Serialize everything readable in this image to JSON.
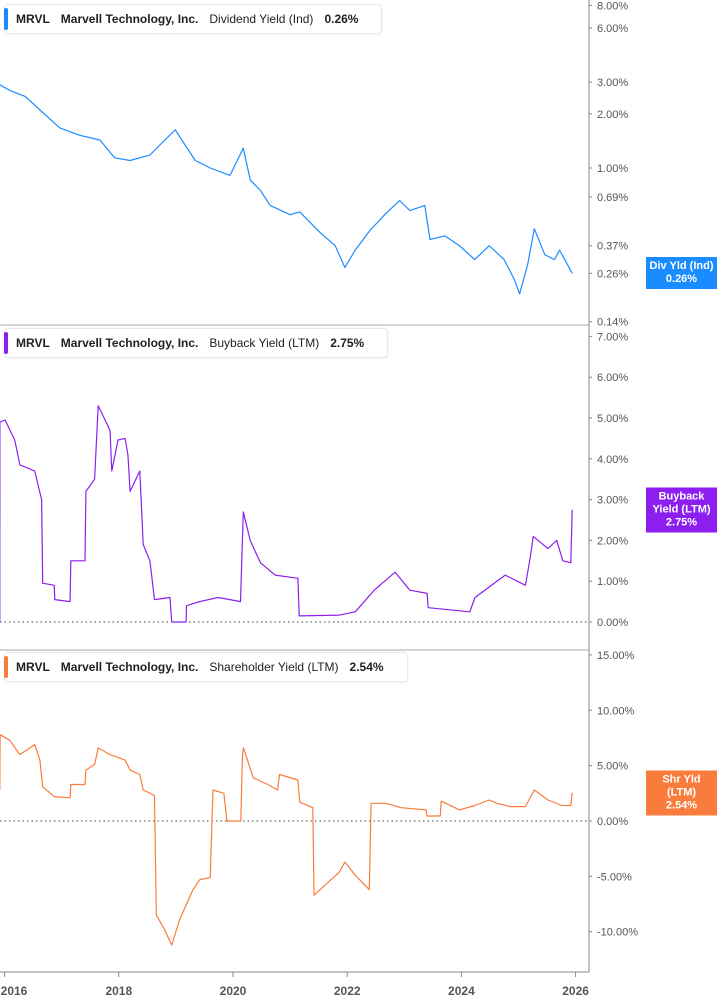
{
  "colors": {
    "dividend": "#1a8cff",
    "buyback": "#8c1ff0",
    "shareholder": "#f97c3c",
    "axis": "#888888",
    "text": "#555555"
  },
  "chart_data": [
    {
      "type": "line",
      "ticker": "MRVL",
      "company": "Marvell Technology, Inc.",
      "metric": "Dividend Yield (Ind)",
      "current_value": "0.26%",
      "callout_label": "Div Yld (Ind)",
      "y_scale": "log",
      "y_ticks": [
        "8.00%",
        "6.00%",
        "3.00%",
        "2.00%",
        "1.00%",
        "0.69%",
        "0.37%",
        "0.26%",
        "0.14%"
      ],
      "y_tick_values": [
        8,
        6,
        3,
        2,
        1,
        0.69,
        0.37,
        0.26,
        0.14
      ],
      "ylim": [
        0.14,
        8
      ],
      "points": [
        [
          "2015-12-01",
          2.9
        ],
        [
          "2016-02-03",
          2.7
        ],
        [
          "2016-05-12",
          2.5
        ],
        [
          "2016-08-15",
          2.1
        ],
        [
          "2016-12-20",
          1.67
        ],
        [
          "2017-04-27",
          1.52
        ],
        [
          "2017-09-02",
          1.43
        ],
        [
          "2017-12-05",
          1.14
        ],
        [
          "2018-03-14",
          1.1
        ],
        [
          "2018-07-19",
          1.18
        ],
        [
          "2018-10-23",
          1.43
        ],
        [
          "2018-12-28",
          1.63
        ],
        [
          "2019-03-01",
          1.34
        ],
        [
          "2019-05-05",
          1.1
        ],
        [
          "2019-08-08",
          1.0
        ],
        [
          "2019-12-13",
          0.91
        ],
        [
          "2020-03-07",
          1.29
        ],
        [
          "2020-04-20",
          0.86
        ],
        [
          "2020-06-25",
          0.75
        ],
        [
          "2020-08-26",
          0.62
        ],
        [
          "2021-01-01",
          0.55
        ],
        [
          "2021-03-04",
          0.57
        ],
        [
          "2021-07-09",
          0.44
        ],
        [
          "2021-10-16",
          0.37
        ],
        [
          "2021-12-17",
          0.28
        ],
        [
          "2022-02-21",
          0.35
        ],
        [
          "2022-05-27",
          0.45
        ],
        [
          "2022-08-29",
          0.55
        ],
        [
          "2022-12-02",
          0.66
        ],
        [
          "2023-02-06",
          0.58
        ],
        [
          "2023-05-12",
          0.62
        ],
        [
          "2023-06-14",
          0.4
        ],
        [
          "2023-09-16",
          0.42
        ],
        [
          "2023-12-20",
          0.37
        ],
        [
          "2024-03-26",
          0.31
        ],
        [
          "2024-06-28",
          0.37
        ],
        [
          "2024-10-01",
          0.31
        ],
        [
          "2024-12-06",
          0.24
        ],
        [
          "2025-01-08",
          0.2
        ],
        [
          "2025-02-28",
          0.29
        ],
        [
          "2025-04-12",
          0.46
        ],
        [
          "2025-06-18",
          0.33
        ],
        [
          "2025-08-19",
          0.31
        ],
        [
          "2025-09-21",
          0.35
        ],
        [
          "2025-12-10",
          0.26
        ]
      ]
    },
    {
      "type": "line",
      "ticker": "MRVL",
      "company": "Marvell Technology, Inc.",
      "metric": "Buyback Yield (LTM)",
      "current_value": "2.75%",
      "callout_label": "Buyback Yield (LTM)",
      "y_scale": "linear",
      "y_ticks": [
        "7.00%",
        "6.00%",
        "5.00%",
        "4.00%",
        "3.00%",
        "2.00%",
        "1.00%",
        "0.00%"
      ],
      "y_tick_values": [
        7,
        6,
        5,
        4,
        3,
        2,
        1,
        0
      ],
      "ylim": [
        0,
        7
      ],
      "zero_line": true,
      "points": [
        [
          "2015-12-01",
          0
        ],
        [
          "2015-12-02",
          4.9
        ],
        [
          "2016-01-04",
          4.95
        ],
        [
          "2016-03-06",
          4.46
        ],
        [
          "2016-04-08",
          3.85
        ],
        [
          "2016-07-12",
          3.7
        ],
        [
          "2016-08-25",
          3.0
        ],
        [
          "2016-09-01",
          0.95
        ],
        [
          "2016-11-14",
          0.9
        ],
        [
          "2016-11-18",
          0.55
        ],
        [
          "2017-02-24",
          0.5
        ],
        [
          "2017-02-28",
          1.5
        ],
        [
          "2017-05-30",
          1.5
        ],
        [
          "2017-06-05",
          3.2
        ],
        [
          "2017-07-30",
          3.5
        ],
        [
          "2017-08-22",
          5.3
        ],
        [
          "2017-11-06",
          4.7
        ],
        [
          "2017-11-17",
          3.7
        ],
        [
          "2017-12-27",
          4.46
        ],
        [
          "2018-02-10",
          4.5
        ],
        [
          "2018-02-28",
          4.1
        ],
        [
          "2018-03-14",
          3.2
        ],
        [
          "2018-05-15",
          3.7
        ],
        [
          "2018-06-06",
          1.9
        ],
        [
          "2018-07-19",
          1.5
        ],
        [
          "2018-08-17",
          0.55
        ],
        [
          "2018-11-24",
          0.6
        ],
        [
          "2018-12-05",
          0
        ],
        [
          "2019-03-07",
          0
        ],
        [
          "2019-03-10",
          0.4
        ],
        [
          "2019-06-03",
          0.5
        ],
        [
          "2019-09-27",
          0.6
        ],
        [
          "2019-12-13",
          0.55
        ],
        [
          "2020-02-18",
          0.5
        ],
        [
          "2020-03-07",
          2.7
        ],
        [
          "2020-04-20",
          2.0
        ],
        [
          "2020-06-25",
          1.45
        ],
        [
          "2020-09-27",
          1.15
        ],
        [
          "2021-02-20",
          1.07
        ],
        [
          "2021-02-28",
          0.15
        ],
        [
          "2021-11-13",
          0.17
        ],
        [
          "2022-02-21",
          0.25
        ],
        [
          "2022-06-28",
          0.8
        ],
        [
          "2022-11-03",
          1.22
        ],
        [
          "2023-02-06",
          0.78
        ],
        [
          "2023-05-27",
          0.7
        ],
        [
          "2023-06-03",
          0.35
        ],
        [
          "2024-02-24",
          0.25
        ],
        [
          "2024-03-28",
          0.6
        ],
        [
          "2024-10-08",
          1.15
        ],
        [
          "2025-02-14",
          0.9
        ],
        [
          "2025-03-18",
          1.6
        ],
        [
          "2025-04-05",
          2.1
        ],
        [
          "2025-07-08",
          1.8
        ],
        [
          "2025-09-02",
          2.0
        ],
        [
          "2025-10-12",
          1.5
        ],
        [
          "2025-12-01",
          1.45
        ],
        [
          "2025-12-10",
          2.75
        ]
      ]
    },
    {
      "type": "line",
      "ticker": "MRVL",
      "company": "Marvell Technology, Inc.",
      "metric": "Shareholder Yield (LTM)",
      "current_value": "2.54%",
      "callout_label": "Shr Yld (LTM)",
      "y_scale": "linear",
      "y_ticks": [
        "15.00%",
        "10.00%",
        "5.00%",
        "0.00%",
        "-5.00%",
        "-10.00%"
      ],
      "y_tick_values": [
        15,
        10,
        5,
        0,
        -5,
        -10
      ],
      "ylim": [
        -13.5,
        15
      ],
      "zero_line": true,
      "points": [
        [
          "2015-12-01",
          2.8
        ],
        [
          "2015-12-03",
          7.8
        ],
        [
          "2016-02-03",
          7.3
        ],
        [
          "2016-04-08",
          6.0
        ],
        [
          "2016-07-12",
          6.9
        ],
        [
          "2016-08-14",
          5.5
        ],
        [
          "2016-09-01",
          3.1
        ],
        [
          "2016-11-14",
          2.2
        ],
        [
          "2017-02-24",
          2.1
        ],
        [
          "2017-02-28",
          3.3
        ],
        [
          "2017-05-30",
          3.3
        ],
        [
          "2017-06-05",
          4.6
        ],
        [
          "2017-07-30",
          5.1
        ],
        [
          "2017-08-22",
          6.6
        ],
        [
          "2017-11-06",
          6.0
        ],
        [
          "2018-02-10",
          5.5
        ],
        [
          "2018-03-14",
          4.6
        ],
        [
          "2018-05-15",
          4.2
        ],
        [
          "2018-06-06",
          2.8
        ],
        [
          "2018-08-17",
          2.3
        ],
        [
          "2018-08-29",
          -8.5
        ],
        [
          "2018-10-20",
          -9.8
        ],
        [
          "2018-12-05",
          -11.2
        ],
        [
          "2019-01-25",
          -8.9
        ],
        [
          "2019-04-20",
          -6.2
        ],
        [
          "2019-06-03",
          -5.3
        ],
        [
          "2019-08-08",
          -5.1
        ],
        [
          "2019-08-26",
          2.8
        ],
        [
          "2019-11-04",
          2.5
        ],
        [
          "2019-11-23",
          0
        ],
        [
          "2020-02-20",
          0
        ],
        [
          "2020-03-02",
          6.0
        ],
        [
          "2020-03-08",
          6.6
        ],
        [
          "2020-05-10",
          3.9
        ],
        [
          "2020-08-12",
          3.3
        ],
        [
          "2020-10-12",
          2.8
        ],
        [
          "2020-10-25",
          4.2
        ],
        [
          "2021-02-20",
          3.7
        ],
        [
          "2021-03-04",
          1.7
        ],
        [
          "2021-05-26",
          1.2
        ],
        [
          "2021-06-03",
          -6.7
        ],
        [
          "2021-08-12",
          -5.8
        ],
        [
          "2021-11-13",
          -4.6
        ],
        [
          "2021-12-17",
          -3.7
        ],
        [
          "2022-02-21",
          -4.9
        ],
        [
          "2022-05-22",
          -6.2
        ],
        [
          "2022-06-03",
          1.6
        ],
        [
          "2022-09-05",
          1.6
        ],
        [
          "2022-12-10",
          1.2
        ],
        [
          "2023-05-20",
          1.0
        ],
        [
          "2023-05-27",
          0.45
        ],
        [
          "2023-08-19",
          0.45
        ],
        [
          "2023-08-25",
          1.8
        ],
        [
          "2023-12-20",
          1.0
        ],
        [
          "2024-03-26",
          1.4
        ],
        [
          "2024-06-28",
          1.9
        ],
        [
          "2024-08-15",
          1.6
        ],
        [
          "2024-11-10",
          1.3
        ],
        [
          "2025-02-14",
          1.3
        ],
        [
          "2025-04-12",
          2.8
        ],
        [
          "2025-07-08",
          1.9
        ],
        [
          "2025-10-05",
          1.4
        ],
        [
          "2025-12-01",
          1.4
        ],
        [
          "2025-12-10",
          2.54
        ]
      ]
    }
  ],
  "x_axis": {
    "ticks": [
      "2016",
      "2018",
      "2020",
      "2022",
      "2024",
      "2026"
    ],
    "tick_values": [
      2016,
      2018,
      2020,
      2022,
      2024,
      2026
    ]
  }
}
